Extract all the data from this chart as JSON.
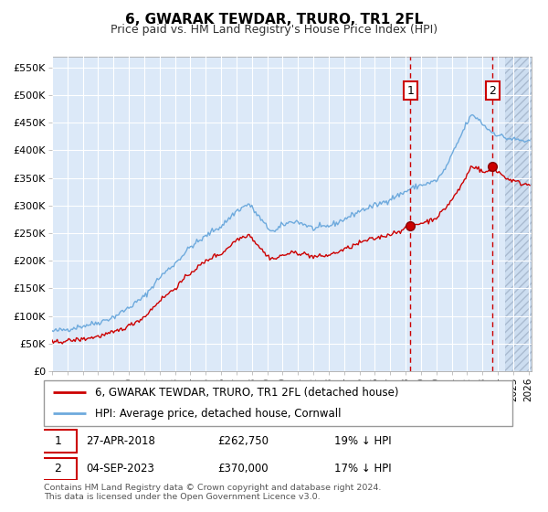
{
  "title": "6, GWARAK TEWDAR, TRURO, TR1 2FL",
  "subtitle": "Price paid vs. HM Land Registry's House Price Index (HPI)",
  "ylabel_ticks": [
    "£0",
    "£50K",
    "£100K",
    "£150K",
    "£200K",
    "£250K",
    "£300K",
    "£350K",
    "£400K",
    "£450K",
    "£500K",
    "£550K"
  ],
  "ytick_values": [
    0,
    50000,
    100000,
    150000,
    200000,
    250000,
    300000,
    350000,
    400000,
    450000,
    500000,
    550000
  ],
  "ylim": [
    0,
    570000
  ],
  "hpi_color": "#6eaadd",
  "price_color": "#cc0000",
  "sale1_t": 2018.323,
  "sale1_price": 262750,
  "sale1_date": "27-APR-2018",
  "sale1_pct": "19% ↓ HPI",
  "sale1_price_str": "£262,750",
  "sale2_t": 2023.674,
  "sale2_price": 370000,
  "sale2_date": "04-SEP-2023",
  "sale2_pct": "17% ↓ HPI",
  "sale2_price_str": "£370,000",
  "legend_line1": "6, GWARAK TEWDAR, TRURO, TR1 2FL (detached house)",
  "legend_line2": "HPI: Average price, detached house, Cornwall",
  "footnote_line1": "Contains HM Land Registry data © Crown copyright and database right 2024.",
  "footnote_line2": "This data is licensed under the Open Government Licence v3.0.",
  "bg_color": "#dce9f8",
  "future_start": 2024.5,
  "xlim_start": 1995.0,
  "xlim_end": 2026.2
}
